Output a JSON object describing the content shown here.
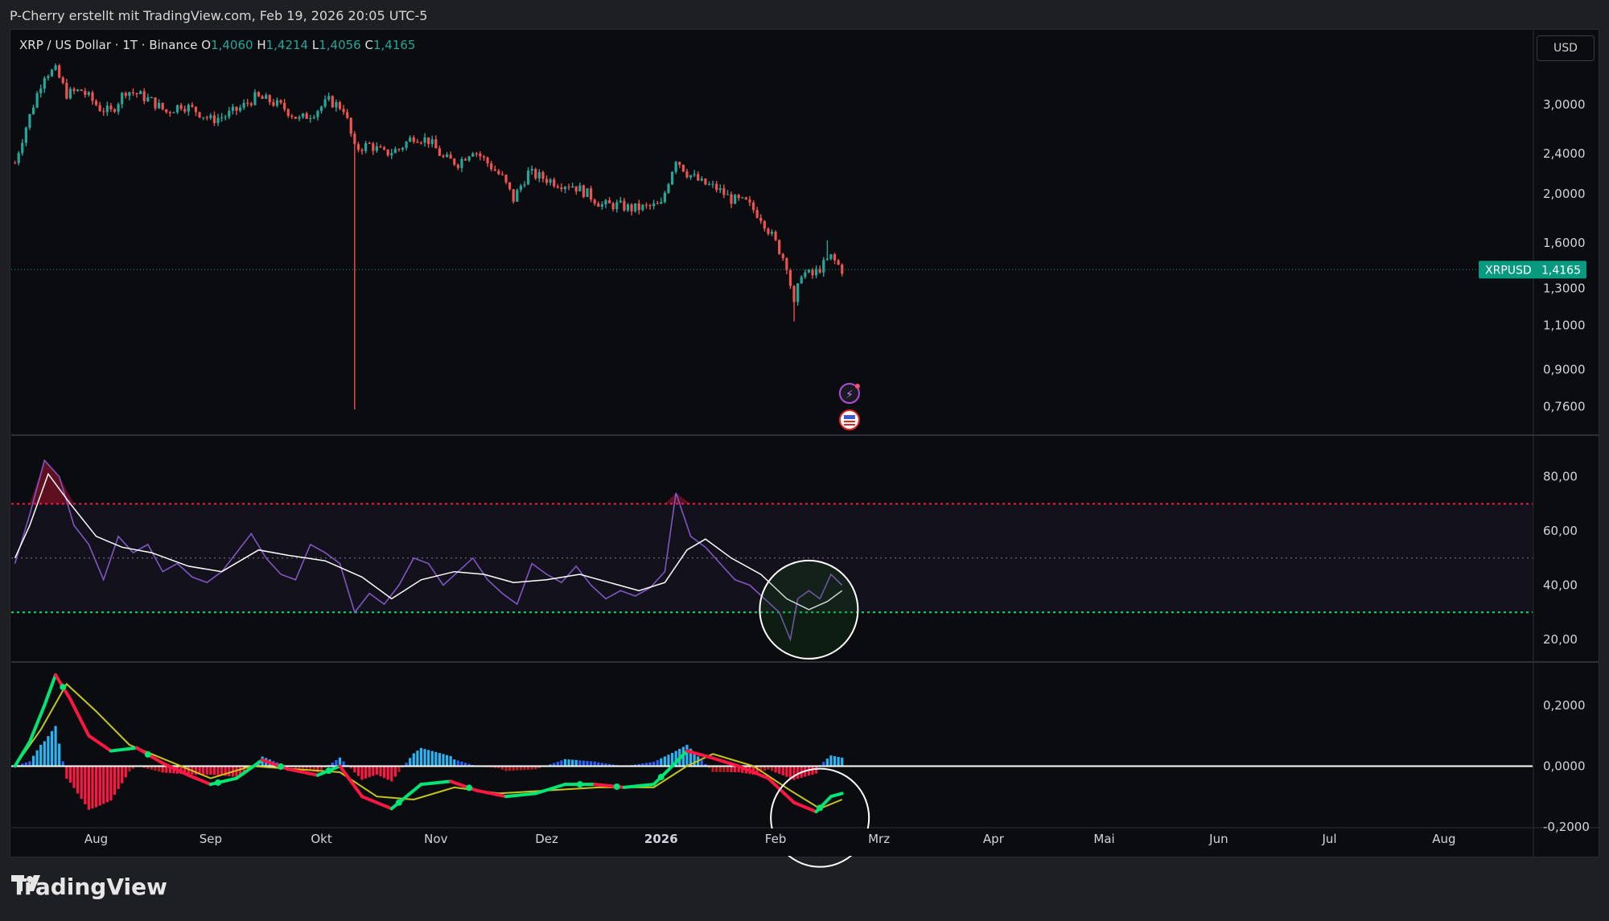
{
  "header": {
    "text": "P-Cherry erstellt mit TradingView.com, Feb 19, 2026 20:05 UTC-5"
  },
  "symbol": {
    "title": "XRP / US Dollar · 1T · Binance",
    "open_label": "O",
    "open_value": "1,4060",
    "high_label": "H",
    "high_value": "1,4214",
    "low_label": "L",
    "low_value": "1,4056",
    "close_label": "C",
    "close_value": "1,4165",
    "ticker": "XRPUSD",
    "last_price": "1,4165",
    "currency": "USD"
  },
  "branding": {
    "name": "TradingView"
  },
  "colors": {
    "up": "#26a69a",
    "down": "#ef5350",
    "rsi": "#7e57c2",
    "rsi_ma": "#ffffff",
    "overbought": "#ff1744",
    "oversold": "#00e676",
    "macd_up": "#00e676",
    "macd_down": "#ff1744",
    "signal": "#c6c61a",
    "price_tag": "#089981"
  },
  "chart_data": [
    {
      "type": "candlestick",
      "ylabel": "",
      "y_scale": "log",
      "y_ticks": [
        "3,0000",
        "2,4000",
        "2,0000",
        "1,6000",
        "1,3000",
        "1,1000",
        "0,9000",
        "0,7600"
      ],
      "x_ticks": [
        "Aug",
        "Sep",
        "Okt",
        "Nov",
        "Dez",
        "2026",
        "Feb",
        "Mrz",
        "Apr",
        "Mai",
        "Jun",
        "Jul",
        "Aug"
      ],
      "close_series": [
        {
          "date": "2025-07-10",
          "close": 2.3
        },
        {
          "date": "2025-07-14",
          "close": 2.85
        },
        {
          "date": "2025-07-18",
          "close": 3.45
        },
        {
          "date": "2025-07-21",
          "close": 3.5
        },
        {
          "date": "2025-07-24",
          "close": 3.15
        },
        {
          "date": "2025-07-28",
          "close": 3.2
        },
        {
          "date": "2025-08-02",
          "close": 2.95
        },
        {
          "date": "2025-08-05",
          "close": 2.9
        },
        {
          "date": "2025-08-09",
          "close": 3.2
        },
        {
          "date": "2025-08-12",
          "close": 3.15
        },
        {
          "date": "2025-08-16",
          "close": 3.05
        },
        {
          "date": "2025-08-20",
          "close": 2.9
        },
        {
          "date": "2025-08-24",
          "close": 3.0
        },
        {
          "date": "2025-08-28",
          "close": 2.92
        },
        {
          "date": "2025-09-01",
          "close": 2.8
        },
        {
          "date": "2025-09-05",
          "close": 2.85
        },
        {
          "date": "2025-09-09",
          "close": 2.95
        },
        {
          "date": "2025-09-13",
          "close": 3.1
        },
        {
          "date": "2025-09-17",
          "close": 3.05
        },
        {
          "date": "2025-09-21",
          "close": 2.95
        },
        {
          "date": "2025-09-25",
          "close": 2.8
        },
        {
          "date": "2025-09-29",
          "close": 2.9
        },
        {
          "date": "2025-10-03",
          "close": 3.05
        },
        {
          "date": "2025-10-07",
          "close": 2.95
        },
        {
          "date": "2025-10-10",
          "close": 2.45
        },
        {
          "date": "2025-10-14",
          "close": 2.5
        },
        {
          "date": "2025-10-18",
          "close": 2.4
        },
        {
          "date": "2025-10-22",
          "close": 2.45
        },
        {
          "date": "2025-10-26",
          "close": 2.6
        },
        {
          "date": "2025-10-30",
          "close": 2.55
        },
        {
          "date": "2025-11-03",
          "close": 2.35
        },
        {
          "date": "2025-11-07",
          "close": 2.3
        },
        {
          "date": "2025-11-11",
          "close": 2.45
        },
        {
          "date": "2025-11-15",
          "close": 2.3
        },
        {
          "date": "2025-11-19",
          "close": 2.15
        },
        {
          "date": "2025-11-22",
          "close": 1.95
        },
        {
          "date": "2025-11-26",
          "close": 2.2
        },
        {
          "date": "2025-11-30",
          "close": 2.15
        },
        {
          "date": "2025-12-04",
          "close": 2.1
        },
        {
          "date": "2025-12-08",
          "close": 2.08
        },
        {
          "date": "2025-12-12",
          "close": 2.0
        },
        {
          "date": "2025-12-16",
          "close": 1.9
        },
        {
          "date": "2025-12-20",
          "close": 1.9
        },
        {
          "date": "2025-12-24",
          "close": 1.87
        },
        {
          "date": "2025-12-28",
          "close": 1.88
        },
        {
          "date": "2026-01-01",
          "close": 1.9
        },
        {
          "date": "2026-01-05",
          "close": 2.35
        },
        {
          "date": "2026-01-08",
          "close": 2.2
        },
        {
          "date": "2026-01-12",
          "close": 2.1
        },
        {
          "date": "2026-01-16",
          "close": 2.05
        },
        {
          "date": "2026-01-20",
          "close": 1.95
        },
        {
          "date": "2026-01-24",
          "close": 1.92
        },
        {
          "date": "2026-01-28",
          "close": 1.8
        },
        {
          "date": "2026-02-01",
          "close": 1.6
        },
        {
          "date": "2026-02-04",
          "close": 1.45
        },
        {
          "date": "2026-02-06",
          "close": 1.2
        },
        {
          "date": "2026-02-08",
          "close": 1.4
        },
        {
          "date": "2026-02-11",
          "close": 1.38
        },
        {
          "date": "2026-02-14",
          "close": 1.45
        },
        {
          "date": "2026-02-16",
          "close": 1.5
        },
        {
          "date": "2026-02-19",
          "close": 1.4165
        }
      ],
      "extremes": [
        {
          "date": "2025-10-10",
          "low": 0.75
        },
        {
          "date": "2026-02-06",
          "low": 1.12
        },
        {
          "date": "2026-02-15",
          "high": 1.62
        }
      ]
    },
    {
      "type": "line",
      "y_ticks": [
        "80,00",
        "60,00",
        "40,00",
        "20,00"
      ],
      "ylim": [
        12,
        95
      ],
      "levels": [
        70,
        50,
        30
      ],
      "rsi": [
        {
          "date": "2025-07-10",
          "v": 48
        },
        {
          "date": "2025-07-14",
          "v": 66
        },
        {
          "date": "2025-07-18",
          "v": 86
        },
        {
          "date": "2025-07-22",
          "v": 80
        },
        {
          "date": "2025-07-26",
          "v": 62
        },
        {
          "date": "2025-07-30",
          "v": 55
        },
        {
          "date": "2025-08-03",
          "v": 42
        },
        {
          "date": "2025-08-07",
          "v": 58
        },
        {
          "date": "2025-08-11",
          "v": 52
        },
        {
          "date": "2025-08-15",
          "v": 55
        },
        {
          "date": "2025-08-19",
          "v": 45
        },
        {
          "date": "2025-08-23",
          "v": 48
        },
        {
          "date": "2025-08-27",
          "v": 43
        },
        {
          "date": "2025-08-31",
          "v": 41
        },
        {
          "date": "2025-09-04",
          "v": 45
        },
        {
          "date": "2025-09-08",
          "v": 52
        },
        {
          "date": "2025-09-12",
          "v": 59
        },
        {
          "date": "2025-09-16",
          "v": 50
        },
        {
          "date": "2025-09-20",
          "v": 44
        },
        {
          "date": "2025-09-24",
          "v": 42
        },
        {
          "date": "2025-09-28",
          "v": 55
        },
        {
          "date": "2025-10-02",
          "v": 52
        },
        {
          "date": "2025-10-06",
          "v": 48
        },
        {
          "date": "2025-10-10",
          "v": 30
        },
        {
          "date": "2025-10-14",
          "v": 37
        },
        {
          "date": "2025-10-18",
          "v": 33
        },
        {
          "date": "2025-10-22",
          "v": 40
        },
        {
          "date": "2025-10-26",
          "v": 50
        },
        {
          "date": "2025-10-30",
          "v": 48
        },
        {
          "date": "2025-11-03",
          "v": 40
        },
        {
          "date": "2025-11-07",
          "v": 45
        },
        {
          "date": "2025-11-11",
          "v": 50
        },
        {
          "date": "2025-11-15",
          "v": 42
        },
        {
          "date": "2025-11-19",
          "v": 37
        },
        {
          "date": "2025-11-23",
          "v": 33
        },
        {
          "date": "2025-11-27",
          "v": 48
        },
        {
          "date": "2025-12-01",
          "v": 44
        },
        {
          "date": "2025-12-05",
          "v": 41
        },
        {
          "date": "2025-12-09",
          "v": 47
        },
        {
          "date": "2025-12-13",
          "v": 40
        },
        {
          "date": "2025-12-17",
          "v": 35
        },
        {
          "date": "2025-12-21",
          "v": 38
        },
        {
          "date": "2025-12-25",
          "v": 36
        },
        {
          "date": "2025-12-29",
          "v": 39
        },
        {
          "date": "2026-01-02",
          "v": 45
        },
        {
          "date": "2026-01-05",
          "v": 74
        },
        {
          "date": "2026-01-09",
          "v": 58
        },
        {
          "date": "2026-01-13",
          "v": 54
        },
        {
          "date": "2026-01-17",
          "v": 48
        },
        {
          "date": "2026-01-21",
          "v": 42
        },
        {
          "date": "2026-01-25",
          "v": 40
        },
        {
          "date": "2026-01-29",
          "v": 35
        },
        {
          "date": "2026-02-02",
          "v": 30
        },
        {
          "date": "2026-02-05",
          "v": 20
        },
        {
          "date": "2026-02-07",
          "v": 35
        },
        {
          "date": "2026-02-10",
          "v": 38
        },
        {
          "date": "2026-02-13",
          "v": 35
        },
        {
          "date": "2026-02-16",
          "v": 44
        },
        {
          "date": "2026-02-19",
          "v": 40
        }
      ],
      "rsi_ma": [
        {
          "date": "2025-07-10",
          "v": 50
        },
        {
          "date": "2025-07-14",
          "v": 62
        },
        {
          "date": "2025-07-19",
          "v": 81
        },
        {
          "date": "2025-07-25",
          "v": 70
        },
        {
          "date": "2025-08-01",
          "v": 58
        },
        {
          "date": "2025-08-08",
          "v": 54
        },
        {
          "date": "2025-08-16",
          "v": 52
        },
        {
          "date": "2025-08-26",
          "v": 47
        },
        {
          "date": "2025-09-04",
          "v": 45
        },
        {
          "date": "2025-09-14",
          "v": 53
        },
        {
          "date": "2025-09-22",
          "v": 51
        },
        {
          "date": "2025-10-02",
          "v": 49
        },
        {
          "date": "2025-10-12",
          "v": 43
        },
        {
          "date": "2025-10-20",
          "v": 35
        },
        {
          "date": "2025-10-28",
          "v": 42
        },
        {
          "date": "2025-11-06",
          "v": 45
        },
        {
          "date": "2025-11-14",
          "v": 44
        },
        {
          "date": "2025-11-22",
          "v": 41
        },
        {
          "date": "2025-12-01",
          "v": 42
        },
        {
          "date": "2025-12-10",
          "v": 44
        },
        {
          "date": "2025-12-18",
          "v": 41
        },
        {
          "date": "2025-12-26",
          "v": 38
        },
        {
          "date": "2026-01-02",
          "v": 41
        },
        {
          "date": "2026-01-08",
          "v": 53
        },
        {
          "date": "2026-01-13",
          "v": 57
        },
        {
          "date": "2026-01-20",
          "v": 50
        },
        {
          "date": "2026-01-28",
          "v": 44
        },
        {
          "date": "2026-02-04",
          "v": 35
        },
        {
          "date": "2026-02-10",
          "v": 31
        },
        {
          "date": "2026-02-15",
          "v": 34
        },
        {
          "date": "2026-02-19",
          "v": 38
        }
      ]
    },
    {
      "type": "line",
      "y_ticks": [
        "0,2000",
        "0,0000",
        "-0,2000"
      ],
      "ylim": [
        -0.2,
        0.34
      ],
      "macd": [
        {
          "date": "2025-07-10",
          "v": 0.0
        },
        {
          "date": "2025-07-14",
          "v": 0.08
        },
        {
          "date": "2025-07-18",
          "v": 0.2
        },
        {
          "date": "2025-07-21",
          "v": 0.3
        },
        {
          "date": "2025-07-25",
          "v": 0.22
        },
        {
          "date": "2025-07-30",
          "v": 0.1
        },
        {
          "date": "2025-08-05",
          "v": 0.05
        },
        {
          "date": "2025-08-12",
          "v": 0.06
        },
        {
          "date": "2025-08-19",
          "v": 0.01
        },
        {
          "date": "2025-08-26",
          "v": -0.03
        },
        {
          "date": "2025-09-01",
          "v": -0.06
        },
        {
          "date": "2025-09-08",
          "v": -0.04
        },
        {
          "date": "2025-09-15",
          "v": 0.02
        },
        {
          "date": "2025-09-22",
          "v": -0.01
        },
        {
          "date": "2025-09-30",
          "v": -0.03
        },
        {
          "date": "2025-10-06",
          "v": 0.0
        },
        {
          "date": "2025-10-12",
          "v": -0.1
        },
        {
          "date": "2025-10-20",
          "v": -0.14
        },
        {
          "date": "2025-10-28",
          "v": -0.06
        },
        {
          "date": "2025-11-05",
          "v": -0.05
        },
        {
          "date": "2025-11-12",
          "v": -0.08
        },
        {
          "date": "2025-11-20",
          "v": -0.1
        },
        {
          "date": "2025-11-28",
          "v": -0.09
        },
        {
          "date": "2025-12-06",
          "v": -0.06
        },
        {
          "date": "2025-12-14",
          "v": -0.06
        },
        {
          "date": "2025-12-22",
          "v": -0.07
        },
        {
          "date": "2025-12-30",
          "v": -0.06
        },
        {
          "date": "2026-01-04",
          "v": 0.0
        },
        {
          "date": "2026-01-08",
          "v": 0.05
        },
        {
          "date": "2026-01-14",
          "v": 0.03
        },
        {
          "date": "2026-01-22",
          "v": 0.0
        },
        {
          "date": "2026-01-30",
          "v": -0.04
        },
        {
          "date": "2026-02-06",
          "v": -0.12
        },
        {
          "date": "2026-02-12",
          "v": -0.15
        },
        {
          "date": "2026-02-16",
          "v": -0.1
        },
        {
          "date": "2026-02-19",
          "v": -0.09
        }
      ],
      "signal": [
        {
          "date": "2025-07-10",
          "v": 0.0
        },
        {
          "date": "2025-07-17",
          "v": 0.12
        },
        {
          "date": "2025-07-24",
          "v": 0.27
        },
        {
          "date": "2025-08-01",
          "v": 0.18
        },
        {
          "date": "2025-08-10",
          "v": 0.07
        },
        {
          "date": "2025-08-20",
          "v": 0.02
        },
        {
          "date": "2025-09-01",
          "v": -0.04
        },
        {
          "date": "2025-09-12",
          "v": 0.0
        },
        {
          "date": "2025-09-24",
          "v": -0.01
        },
        {
          "date": "2025-10-06",
          "v": -0.02
        },
        {
          "date": "2025-10-16",
          "v": -0.1
        },
        {
          "date": "2025-10-26",
          "v": -0.11
        },
        {
          "date": "2025-11-06",
          "v": -0.07
        },
        {
          "date": "2025-11-18",
          "v": -0.09
        },
        {
          "date": "2025-12-01",
          "v": -0.08
        },
        {
          "date": "2025-12-15",
          "v": -0.07
        },
        {
          "date": "2025-12-30",
          "v": -0.07
        },
        {
          "date": "2026-01-08",
          "v": 0.0
        },
        {
          "date": "2026-01-15",
          "v": 0.04
        },
        {
          "date": "2026-01-26",
          "v": 0.0
        },
        {
          "date": "2026-02-05",
          "v": -0.08
        },
        {
          "date": "2026-02-13",
          "v": -0.14
        },
        {
          "date": "2026-02-19",
          "v": -0.11
        }
      ]
    }
  ]
}
